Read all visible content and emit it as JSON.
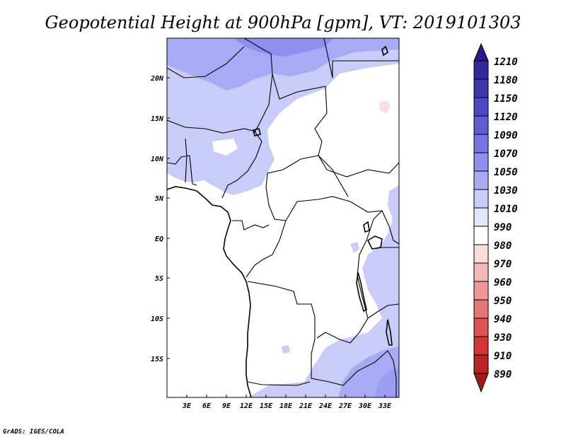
{
  "title": "Geopotential Height at 900hPa [gpm], VT: 2019101303",
  "credit": "GrADS: IGES/COLA",
  "map": {
    "lat_labels": [
      "20N",
      "15N",
      "10N",
      "5N",
      "EQ",
      "5S",
      "10S",
      "15S"
    ],
    "lon_labels": [
      "3E",
      "6E",
      "9E",
      "12E",
      "15E",
      "18E",
      "21E",
      "24E",
      "27E",
      "30E",
      "33E"
    ]
  },
  "colorbar": {
    "levels": [
      "1210",
      "1180",
      "1150",
      "1120",
      "1090",
      "1070",
      "1050",
      "1030",
      "1010",
      "990",
      "980",
      "970",
      "960",
      "950",
      "940",
      "930",
      "910",
      "890"
    ],
    "colors": [
      "#2a1b8c",
      "#34289e",
      "#3f36b0",
      "#4d47c4",
      "#5f5cd6",
      "#7675e3",
      "#8f8ff0",
      "#a9aaf5",
      "#c9cbf8",
      "#e3e5fb",
      "#ffffff",
      "#fbdcdc",
      "#f5b8b8",
      "#ee9797",
      "#e67575",
      "#dd5353",
      "#d13535",
      "#bb2222",
      "#a11818"
    ]
  },
  "chart_data": {
    "type": "heatmap",
    "title": "Geopotential Height at 900hPa [gpm], VT: 2019101303",
    "variable": "Geopotential Height at 900hPa",
    "units": "gpm",
    "valid_time": "2019101303",
    "lon_range": [
      0,
      35
    ],
    "lat_range": [
      -20,
      25
    ],
    "levels": [
      890,
      910,
      930,
      940,
      950,
      960,
      970,
      980,
      990,
      1010,
      1030,
      1050,
      1070,
      1090,
      1120,
      1150,
      1180,
      1210
    ]
  }
}
